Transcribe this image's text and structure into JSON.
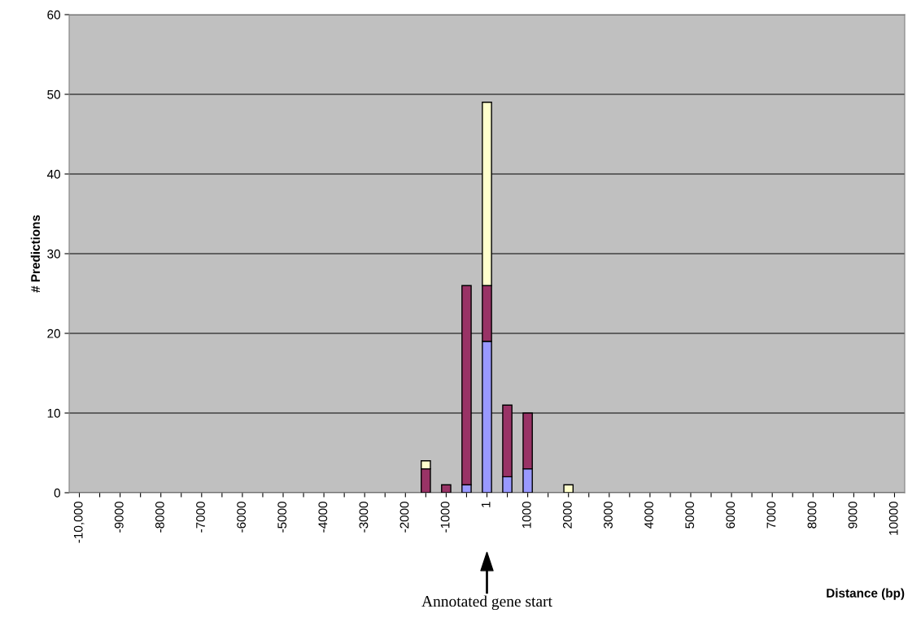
{
  "chart_data": {
    "type": "bar",
    "stacked": true,
    "xlabel": "Distance (bp)",
    "ylabel": "# Predictions",
    "categories": [
      "-10,000",
      null,
      "-9000",
      null,
      "-8000",
      null,
      "-7000",
      null,
      "-6000",
      null,
      "-5000",
      null,
      "-4000",
      null,
      "-3000",
      null,
      "-2000",
      null,
      "-1000",
      null,
      "1",
      null,
      "1000",
      null,
      "2000",
      null,
      "3000",
      null,
      "4000",
      null,
      "5000",
      null,
      "6000",
      null,
      "7000",
      null,
      "8000",
      null,
      "9000",
      null,
      "10000"
    ],
    "series": [
      {
        "color": "#9999ff",
        "values": [
          0,
          0,
          0,
          0,
          0,
          0,
          0,
          0,
          0,
          0,
          0,
          0,
          0,
          0,
          0,
          0,
          0,
          0,
          0,
          1,
          19,
          2,
          3,
          0,
          0,
          0,
          0,
          0,
          0,
          0,
          0,
          0,
          0,
          0,
          0,
          0,
          0,
          0,
          0,
          0,
          0
        ]
      },
      {
        "color": "#993366",
        "values": [
          0,
          0,
          0,
          0,
          0,
          0,
          0,
          0,
          0,
          0,
          0,
          0,
          0,
          0,
          0,
          0,
          0,
          3,
          1,
          25,
          7,
          9,
          7,
          0,
          0,
          0,
          0,
          0,
          0,
          0,
          0,
          0,
          0,
          0,
          0,
          0,
          0,
          0,
          0,
          0,
          0
        ]
      },
      {
        "color": "#ffffcc",
        "values": [
          0,
          0,
          0,
          0,
          0,
          0,
          0,
          0,
          0,
          0,
          0,
          0,
          0,
          0,
          0,
          0,
          0,
          1,
          0,
          0,
          23,
          0,
          0,
          0,
          1,
          0,
          0,
          0,
          0,
          0,
          0,
          0,
          0,
          0,
          0,
          0,
          0,
          0,
          0,
          0,
          0
        ]
      }
    ],
    "ylim": [
      0,
      60
    ],
    "yticks": [
      0,
      10,
      20,
      30,
      40,
      50,
      60
    ],
    "grid": "y",
    "annotations": [
      "Annotated gene start"
    ]
  }
}
